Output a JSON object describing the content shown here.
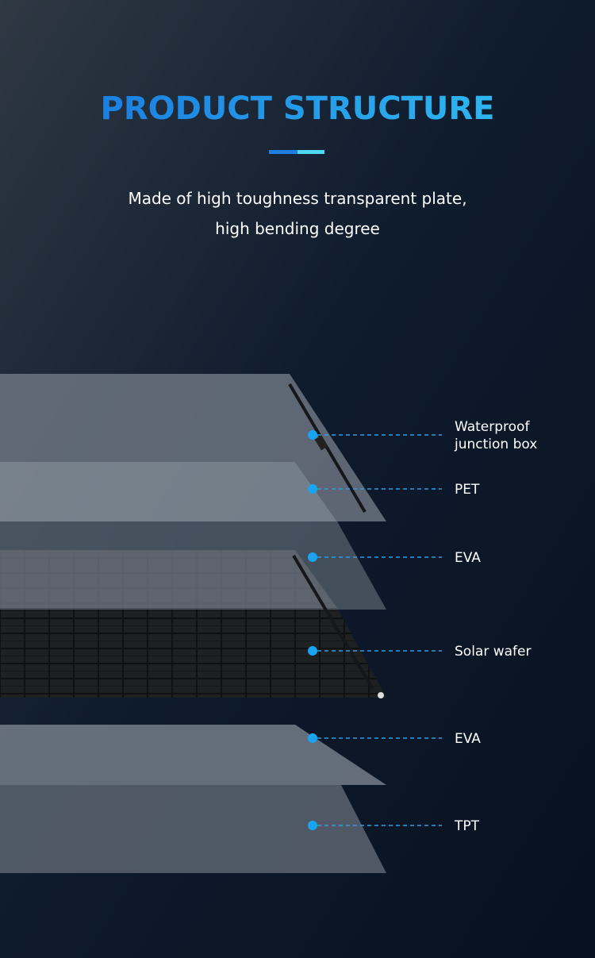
{
  "header": {
    "title": "PRODUCT STRUCTURE",
    "subtitle": [
      "Made of high toughness transparent plate,",
      "high bending degree"
    ]
  },
  "layers": [
    {
      "label": [
        "Waterproof",
        "junction box"
      ]
    },
    {
      "label": [
        "PET"
      ]
    },
    {
      "label": [
        "EVA"
      ]
    },
    {
      "label": [
        "Solar wafer"
      ]
    },
    {
      "label": [
        "EVA"
      ]
    },
    {
      "label": [
        "TPT"
      ]
    }
  ]
}
